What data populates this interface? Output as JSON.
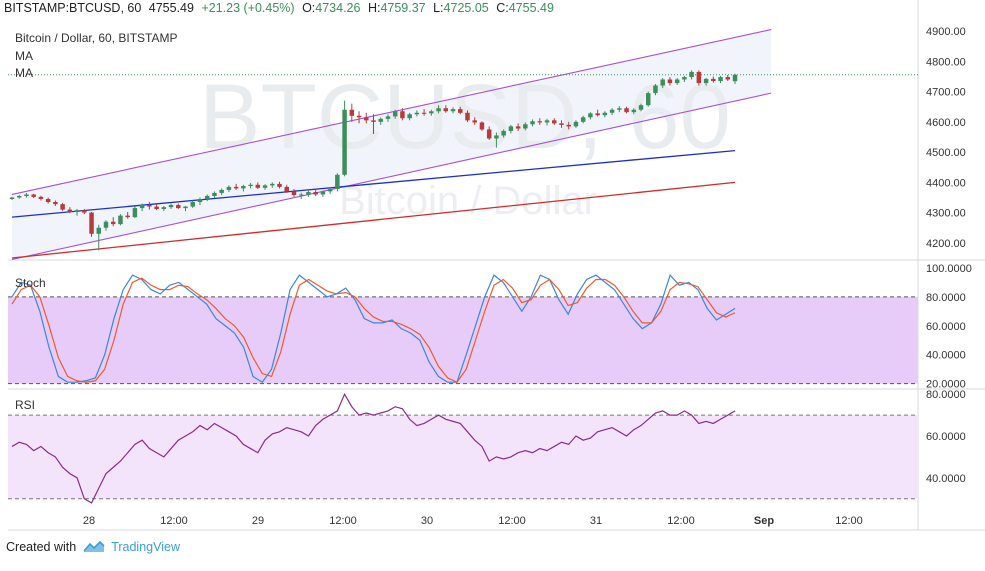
{
  "header": {
    "symbol": "BITSTAMP:BTCUSD, 60",
    "last": "4755.49",
    "change": "+21.23 (+0.45%)",
    "o_label": "O:",
    "o": "4734.26",
    "h_label": "H:",
    "h": "4759.37",
    "l_label": "L:",
    "l": "4725.05",
    "c_label": "C:",
    "c": "4755.49"
  },
  "legend": {
    "title": "Bitcoin / Dollar, 60, BITSTAMP",
    "ma1": "MA",
    "ma2": "MA"
  },
  "watermark": {
    "ticker": "BTCUSD, 60",
    "name": "Bitcoin / Dollar"
  },
  "footer": {
    "created_with": "Created with",
    "brand": "TradingView"
  },
  "colors": {
    "up": "#3b8f5a",
    "down": "#b83a3a",
    "channel": "#a64ee0",
    "ma_blue": "#1b2fcc",
    "ma_red": "#d42a2a",
    "stoch_k": "#3b86e0",
    "stoch_d": "#f05a2a",
    "stoch_fill": "#e7ccfa",
    "rsi_line": "#8a2c8e",
    "rsi_fill": "#f4e4fb"
  },
  "chart_data": [
    {
      "type": "candlestick",
      "name": "price",
      "title": "Bitcoin / Dollar, 60, BITSTAMP",
      "x_tick_labels": [
        "28",
        "12:00",
        "29",
        "12:00",
        "30",
        "12:00",
        "31",
        "12:00",
        "Sep",
        "12:00"
      ],
      "y_ticks": [
        4200,
        4300,
        4400,
        4500,
        4600,
        4700,
        4800,
        4900
      ],
      "y_tick_labels": [
        "4200.00",
        "4300.00",
        "4400.00",
        "4500.00",
        "4600.00",
        "4700.00",
        "4800.00",
        "4900.00"
      ],
      "ylim": [
        4150,
        4930
      ],
      "last_price": 4755.49,
      "candles": [
        [
          4345,
          4352,
          4342,
          4350
        ],
        [
          4350,
          4358,
          4346,
          4355
        ],
        [
          4355,
          4365,
          4350,
          4360
        ],
        [
          4360,
          4362,
          4348,
          4352
        ],
        [
          4352,
          4356,
          4340,
          4345
        ],
        [
          4345,
          4350,
          4330,
          4335
        ],
        [
          4335,
          4340,
          4322,
          4328
        ],
        [
          4328,
          4332,
          4305,
          4310
        ],
        [
          4310,
          4318,
          4298,
          4302
        ],
        [
          4302,
          4312,
          4290,
          4308
        ],
        [
          4308,
          4312,
          4295,
          4300
        ],
        [
          4300,
          4302,
          4220,
          4230
        ],
        [
          4230,
          4260,
          4175,
          4250
        ],
        [
          4250,
          4275,
          4240,
          4270
        ],
        [
          4270,
          4285,
          4255,
          4262
        ],
        [
          4262,
          4295,
          4258,
          4290
        ],
        [
          4290,
          4302,
          4280,
          4285
        ],
        [
          4285,
          4320,
          4282,
          4315
        ],
        [
          4315,
          4330,
          4305,
          4325
        ],
        [
          4325,
          4335,
          4310,
          4320
        ],
        [
          4320,
          4328,
          4308,
          4312
        ],
        [
          4312,
          4322,
          4305,
          4318
        ],
        [
          4318,
          4330,
          4312,
          4325
        ],
        [
          4325,
          4330,
          4312,
          4315
        ],
        [
          4315,
          4322,
          4305,
          4320
        ],
        [
          4320,
          4340,
          4315,
          4335
        ],
        [
          4335,
          4350,
          4325,
          4345
        ],
        [
          4345,
          4360,
          4338,
          4355
        ],
        [
          4355,
          4370,
          4348,
          4365
        ],
        [
          4365,
          4380,
          4358,
          4375
        ],
        [
          4375,
          4390,
          4368,
          4385
        ],
        [
          4385,
          4395,
          4375,
          4380
        ],
        [
          4380,
          4392,
          4370,
          4388
        ],
        [
          4388,
          4398,
          4380,
          4392
        ],
        [
          4392,
          4400,
          4378,
          4382
        ],
        [
          4382,
          4394,
          4375,
          4390
        ],
        [
          4390,
          4400,
          4382,
          4395
        ],
        [
          4395,
          4402,
          4380,
          4385
        ],
        [
          4385,
          4392,
          4365,
          4370
        ],
        [
          4370,
          4378,
          4352,
          4358
        ],
        [
          4358,
          4366,
          4345,
          4360
        ],
        [
          4360,
          4372,
          4352,
          4368
        ],
        [
          4368,
          4375,
          4355,
          4360
        ],
        [
          4360,
          4372,
          4352,
          4370
        ],
        [
          4370,
          4382,
          4362,
          4378
        ],
        [
          4378,
          4430,
          4370,
          4425
        ],
        [
          4425,
          4670,
          4420,
          4640
        ],
        [
          4640,
          4660,
          4600,
          4620
        ],
        [
          4620,
          4635,
          4595,
          4615
        ],
        [
          4615,
          4630,
          4595,
          4605
        ],
        [
          4605,
          4625,
          4560,
          4600
        ],
        [
          4600,
          4615,
          4590,
          4610
        ],
        [
          4610,
          4625,
          4600,
          4618
        ],
        [
          4618,
          4640,
          4610,
          4635
        ],
        [
          4635,
          4645,
          4605,
          4612
        ],
        [
          4612,
          4630,
          4605,
          4625
        ],
        [
          4625,
          4638,
          4618,
          4630
        ],
        [
          4630,
          4642,
          4620,
          4628
        ],
        [
          4628,
          4640,
          4620,
          4635
        ],
        [
          4635,
          4655,
          4628,
          4645
        ],
        [
          4645,
          4655,
          4630,
          4635
        ],
        [
          4635,
          4648,
          4628,
          4642
        ],
        [
          4642,
          4650,
          4625,
          4630
        ],
        [
          4630,
          4638,
          4600,
          4605
        ],
        [
          4605,
          4615,
          4590,
          4598
        ],
        [
          4598,
          4602,
          4570,
          4575
        ],
        [
          4575,
          4585,
          4540,
          4545
        ],
        [
          4545,
          4565,
          4515,
          4555
        ],
        [
          4555,
          4575,
          4548,
          4570
        ],
        [
          4570,
          4590,
          4562,
          4585
        ],
        [
          4585,
          4595,
          4570,
          4578
        ],
        [
          4578,
          4598,
          4572,
          4592
        ],
        [
          4592,
          4608,
          4585,
          4602
        ],
        [
          4602,
          4612,
          4590,
          4598
        ],
        [
          4598,
          4610,
          4588,
          4605
        ],
        [
          4605,
          4612,
          4590,
          4595
        ],
        [
          4595,
          4605,
          4580,
          4590
        ],
        [
          4590,
          4600,
          4575,
          4585
        ],
        [
          4585,
          4605,
          4580,
          4600
        ],
        [
          4600,
          4620,
          4595,
          4615
        ],
        [
          4615,
          4632,
          4608,
          4628
        ],
        [
          4628,
          4640,
          4618,
          4622
        ],
        [
          4622,
          4635,
          4615,
          4630
        ],
        [
          4630,
          4645,
          4622,
          4640
        ],
        [
          4640,
          4652,
          4632,
          4645
        ],
        [
          4645,
          4650,
          4628,
          4632
        ],
        [
          4632,
          4645,
          4625,
          4640
        ],
        [
          4640,
          4660,
          4635,
          4655
        ],
        [
          4655,
          4700,
          4650,
          4695
        ],
        [
          4695,
          4725,
          4688,
          4720
        ],
        [
          4720,
          4745,
          4712,
          4740
        ],
        [
          4740,
          4748,
          4720,
          4728
        ],
        [
          4728,
          4745,
          4722,
          4740
        ],
        [
          4740,
          4752,
          4732,
          4748
        ],
        [
          4748,
          4770,
          4740,
          4765
        ],
        [
          4765,
          4770,
          4720,
          4728
        ],
        [
          4728,
          4745,
          4720,
          4742
        ],
        [
          4742,
          4750,
          4730,
          4735
        ],
        [
          4735,
          4752,
          4728,
          4748
        ],
        [
          4748,
          4755,
          4735,
          4740
        ],
        [
          4734.26,
          4759.37,
          4725.05,
          4755.49
        ]
      ],
      "overlays": [
        {
          "type": "line",
          "color_key": "channel",
          "from": [
            0,
            4360
          ],
          "to": [
            105,
            4905
          ]
        },
        {
          "type": "line",
          "color_key": "channel",
          "from": [
            0,
            4145
          ],
          "to": [
            105,
            4695
          ]
        },
        {
          "type": "line",
          "name": "MA",
          "color_key": "ma_blue",
          "from": [
            0,
            4285
          ],
          "to": [
            100,
            4505
          ]
        },
        {
          "type": "line",
          "name": "MA",
          "color_key": "ma_red",
          "from": [
            0,
            4150
          ],
          "to": [
            100,
            4400
          ]
        }
      ]
    },
    {
      "type": "line",
      "name": "Stoch",
      "title": "Stoch",
      "y_ticks": [
        20,
        40,
        60,
        80,
        100
      ],
      "y_tick_labels": [
        "20.0000",
        "40.0000",
        "60.0000",
        "80.0000",
        "100.0000"
      ],
      "ylim": [
        17,
        102
      ],
      "band": [
        20,
        80
      ],
      "series": [
        {
          "color_key": "stoch_k",
          "values": [
            80,
            90,
            88,
            70,
            45,
            25,
            21,
            21,
            22,
            24,
            40,
            65,
            85,
            95,
            92,
            85,
            82,
            88,
            90,
            85,
            80,
            75,
            65,
            60,
            55,
            45,
            25,
            21,
            30,
            55,
            85,
            95,
            90,
            85,
            80,
            82,
            86,
            78,
            65,
            62,
            62,
            64,
            58,
            55,
            50,
            35,
            25,
            21,
            21,
            40,
            60,
            80,
            95,
            90,
            80,
            70,
            80,
            95,
            92,
            78,
            68,
            82,
            92,
            95,
            90,
            85,
            75,
            65,
            58,
            62,
            75,
            95,
            88,
            90,
            85,
            72,
            64,
            68,
            72
          ]
        },
        {
          "color_key": "stoch_d",
          "values": [
            75,
            85,
            88,
            80,
            60,
            38,
            25,
            22,
            21,
            22,
            30,
            50,
            75,
            90,
            93,
            88,
            85,
            85,
            88,
            87,
            82,
            78,
            72,
            65,
            60,
            52,
            38,
            27,
            25,
            42,
            68,
            88,
            92,
            88,
            84,
            82,
            83,
            80,
            72,
            66,
            63,
            63,
            61,
            58,
            54,
            45,
            32,
            24,
            21,
            30,
            50,
            70,
            88,
            92,
            86,
            76,
            78,
            88,
            92,
            85,
            74,
            76,
            86,
            92,
            92,
            88,
            80,
            70,
            62,
            62,
            70,
            85,
            90,
            89,
            87,
            78,
            69,
            66,
            69
          ]
        }
      ]
    },
    {
      "type": "line",
      "name": "RSI",
      "title": "RSI",
      "y_ticks": [
        40,
        60,
        80
      ],
      "y_tick_labels": [
        "40.0000",
        "60.0000",
        "80.0000"
      ],
      "ylim": [
        27,
        82
      ],
      "band": [
        30,
        70
      ],
      "series": [
        {
          "color_key": "rsi_line",
          "values": [
            55,
            57,
            56,
            53,
            55,
            52,
            50,
            45,
            42,
            40,
            30,
            28,
            35,
            42,
            45,
            48,
            52,
            56,
            58,
            54,
            52,
            50,
            54,
            58,
            60,
            62,
            65,
            63,
            66,
            64,
            62,
            60,
            56,
            54,
            52,
            58,
            61,
            62,
            64,
            63,
            62,
            60,
            65,
            68,
            70,
            72,
            80,
            74,
            70,
            71,
            70,
            71,
            72,
            74,
            73,
            68,
            65,
            66,
            68,
            70,
            68,
            67,
            66,
            62,
            58,
            55,
            48,
            50,
            49,
            50,
            52,
            53,
            52,
            54,
            53,
            55,
            57,
            56,
            60,
            58,
            59,
            62,
            63,
            64,
            62,
            60,
            63,
            65,
            68,
            71,
            72,
            70,
            70,
            72,
            70,
            66,
            67,
            66,
            68,
            70,
            72
          ]
        }
      ]
    }
  ]
}
